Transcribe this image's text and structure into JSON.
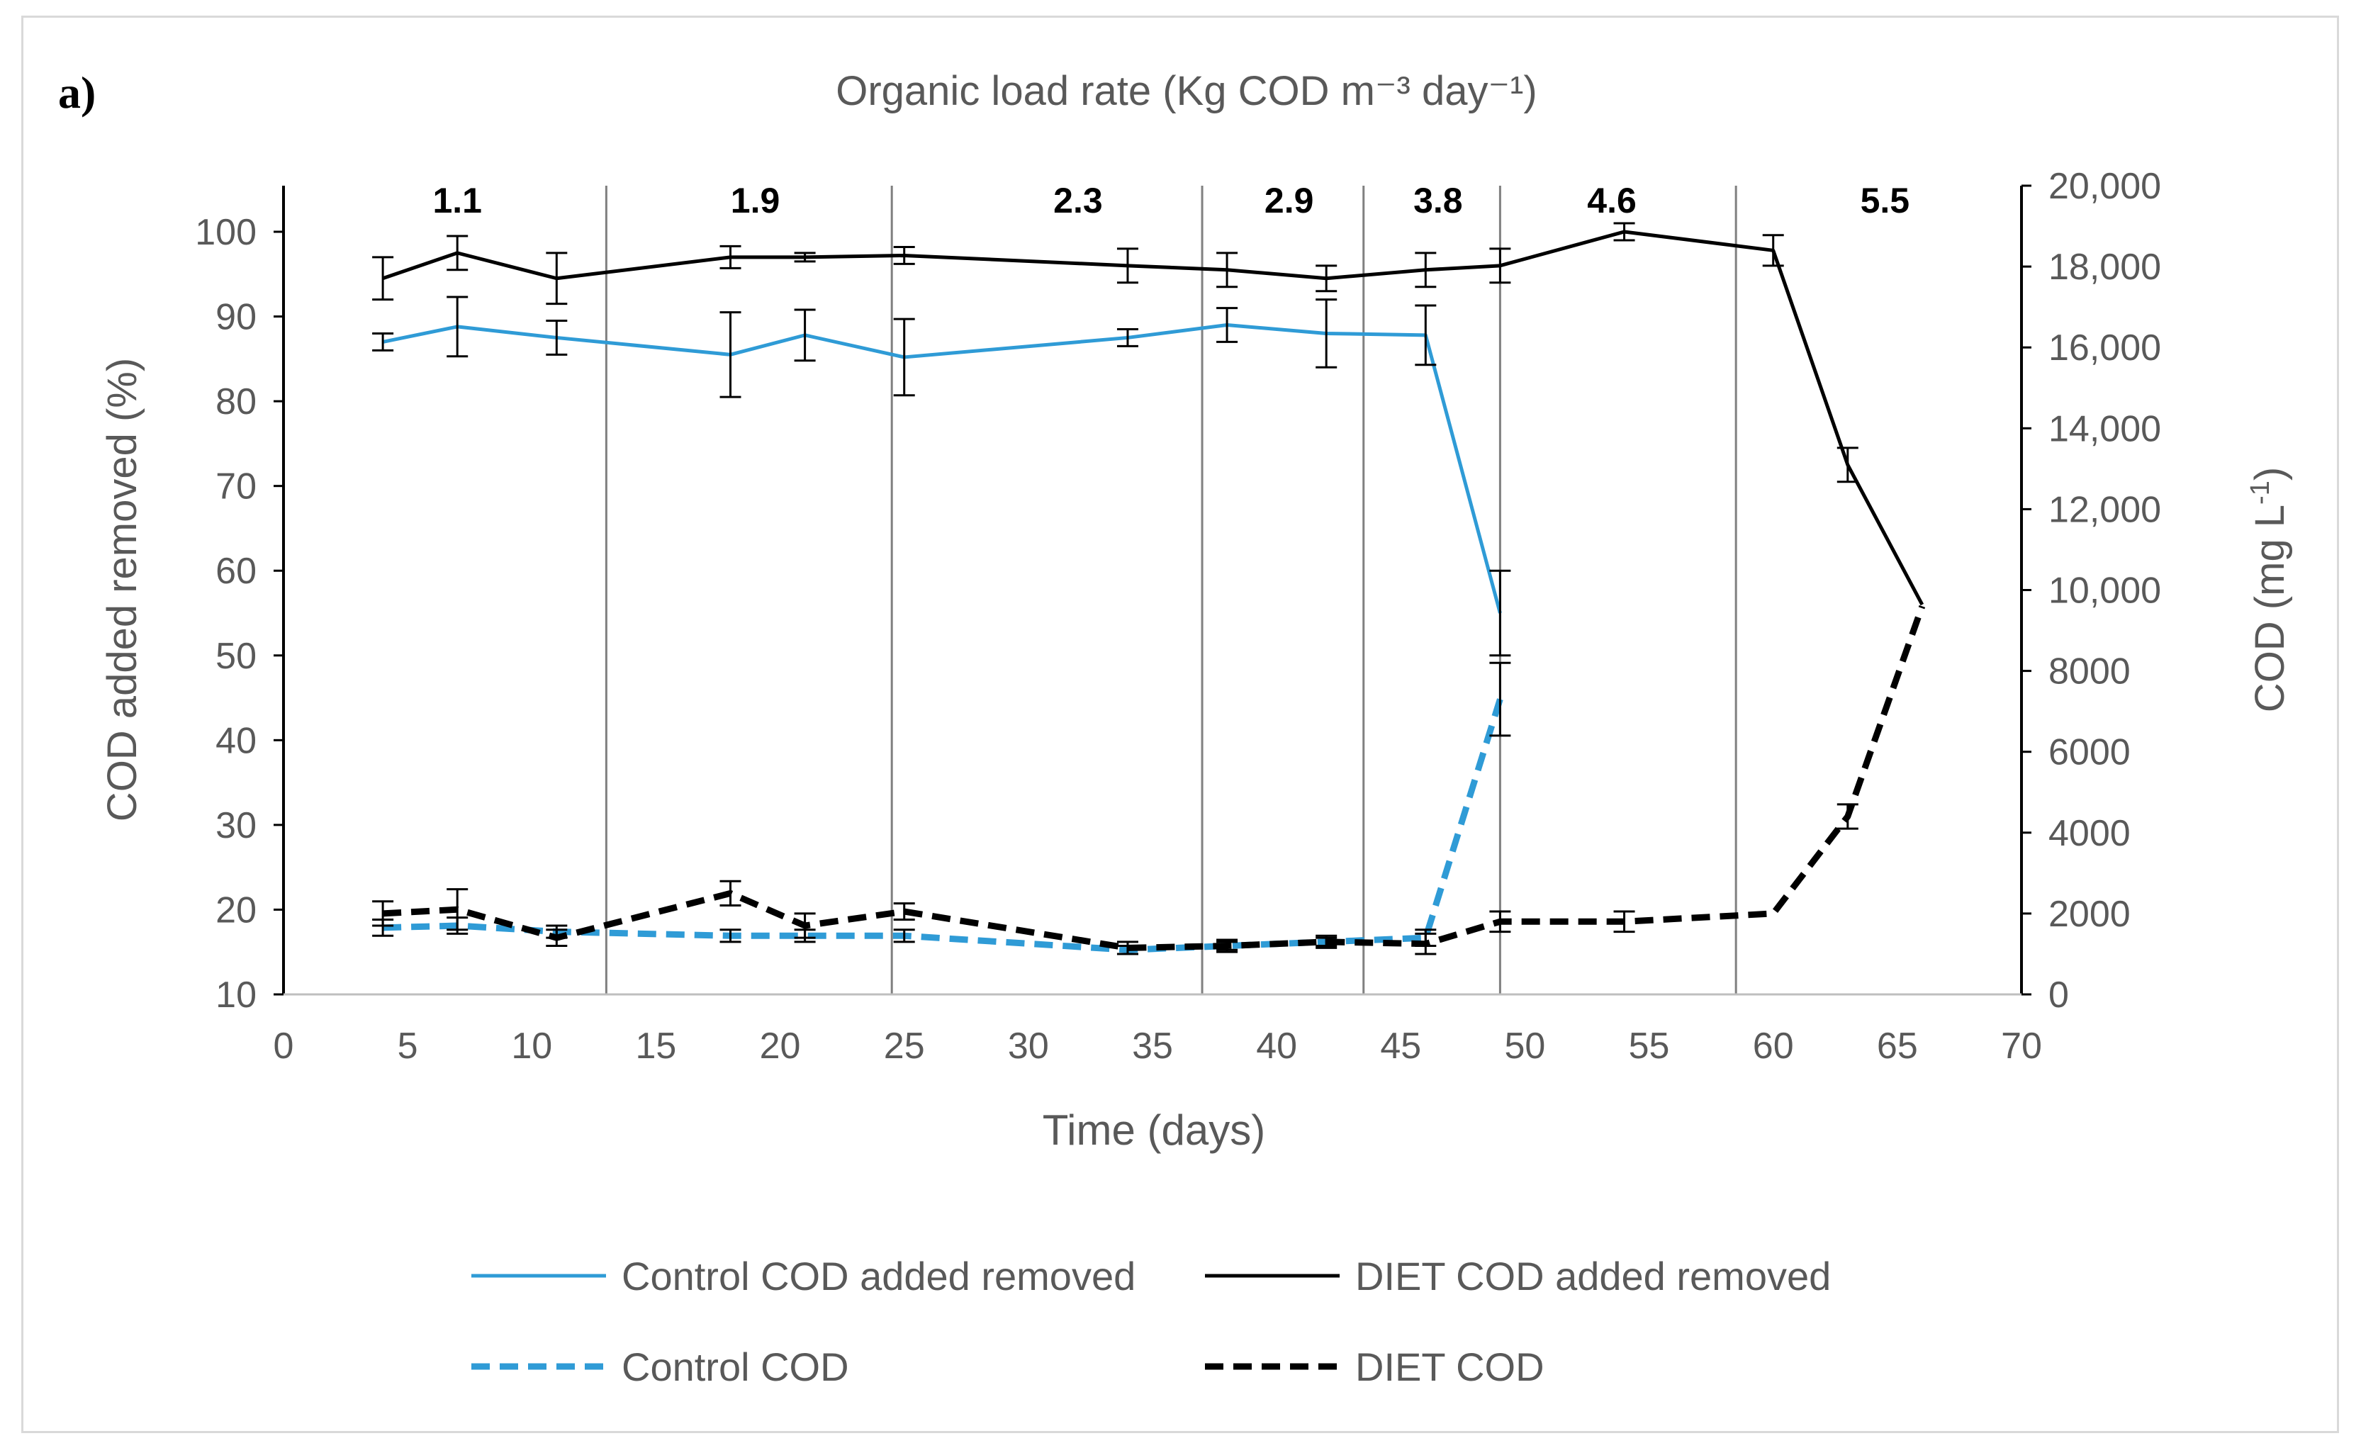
{
  "chart_data": {
    "type": "line",
    "panel_label": "a)",
    "title": "Organic load rate (Kg COD m⁻³ day⁻¹)",
    "xlabel": "Time (days)",
    "ylabel_left": "COD added removed (%)",
    "ylabel_right": "COD (mg L-1)",
    "xlim": [
      0,
      70
    ],
    "ylim_left": [
      10,
      105
    ],
    "ylim_right": [
      0,
      20000
    ],
    "x_ticks": [
      "0",
      "5",
      "10",
      "15",
      "20",
      "25",
      "30",
      "35",
      "40",
      "45",
      "50",
      "55",
      "60",
      "65",
      "70"
    ],
    "y_left_ticks": [
      "10",
      "20",
      "30",
      "40",
      "50",
      "60",
      "70",
      "80",
      "90",
      "100"
    ],
    "y_right_ticks": [
      "0",
      "2000",
      "4000",
      "6000",
      "8000",
      "10,000",
      "12,000",
      "14,000",
      "16,000",
      "18,000",
      "20,000"
    ],
    "y_right_tick_values": [
      0,
      2000,
      4000,
      6000,
      8000,
      10000,
      12000,
      14000,
      16000,
      18000,
      20000
    ],
    "phase_boundaries_days": [
      13,
      24.5,
      37,
      43.5,
      49,
      58.5
    ],
    "phase_labels": [
      {
        "label": "1.1",
        "x": 7
      },
      {
        "label": "1.9",
        "x": 19
      },
      {
        "label": "2.3",
        "x": 32
      },
      {
        "label": "2.9",
        "x": 40.5
      },
      {
        "label": "3.8",
        "x": 46.5
      },
      {
        "label": "4.6",
        "x": 53.5
      },
      {
        "label": "5.5",
        "x": 64.5
      }
    ],
    "series": [
      {
        "name": "Control COD added removed",
        "axis": "left",
        "color": "#2f9bd6",
        "dash": false,
        "x": [
          4,
          7,
          11,
          18,
          21,
          25,
          34,
          38,
          42,
          46,
          49
        ],
        "y": [
          87,
          88.8,
          87.5,
          85.5,
          87.8,
          85.2,
          87.5,
          89,
          88,
          87.8,
          55
        ],
        "err": [
          1,
          3.5,
          2,
          5,
          3,
          4.5,
          1,
          2,
          4,
          3.5,
          5
        ]
      },
      {
        "name": "DIET COD added removed",
        "axis": "left",
        "color": "#000000",
        "dash": false,
        "x": [
          4,
          7,
          11,
          18,
          21,
          25,
          34,
          38,
          42,
          46,
          49,
          54,
          60,
          63,
          66
        ],
        "y": [
          94.5,
          97.5,
          94.5,
          97,
          97,
          97.2,
          96,
          95.5,
          94.5,
          95.5,
          96,
          100,
          97.8,
          72.5,
          56
        ],
        "err": [
          2.5,
          2,
          3,
          1.3,
          0.5,
          1,
          2,
          2,
          1.5,
          2,
          2,
          1,
          1.8,
          2,
          0
        ]
      },
      {
        "name": "Control COD",
        "axis": "right",
        "color": "#2f9bd6",
        "dash": true,
        "x": [
          4,
          7,
          11,
          18,
          21,
          25,
          34,
          38,
          42,
          46,
          49
        ],
        "y": [
          1650,
          1700,
          1550,
          1450,
          1450,
          1450,
          1100,
          1200,
          1300,
          1400,
          7300
        ],
        "err": [
          200,
          200,
          150,
          150,
          150,
          150,
          100,
          100,
          100,
          200,
          900
        ]
      },
      {
        "name": "DIET COD",
        "axis": "right",
        "color": "#000000",
        "dash": true,
        "x": [
          4,
          7,
          11,
          18,
          21,
          25,
          34,
          38,
          42,
          46,
          49,
          54,
          60,
          63,
          66
        ],
        "y": [
          2000,
          2100,
          1400,
          2500,
          1700,
          2050,
          1150,
          1200,
          1300,
          1250,
          1800,
          1800,
          2000,
          4400,
          9600
        ],
        "err": [
          300,
          500,
          200,
          300,
          300,
          200,
          150,
          150,
          150,
          250,
          250,
          250,
          0,
          300,
          0
        ]
      }
    ],
    "legend": {
      "placement": "bottom",
      "entries": [
        "Control COD added removed",
        "DIET COD added removed",
        "Control COD",
        "DIET COD"
      ]
    }
  }
}
